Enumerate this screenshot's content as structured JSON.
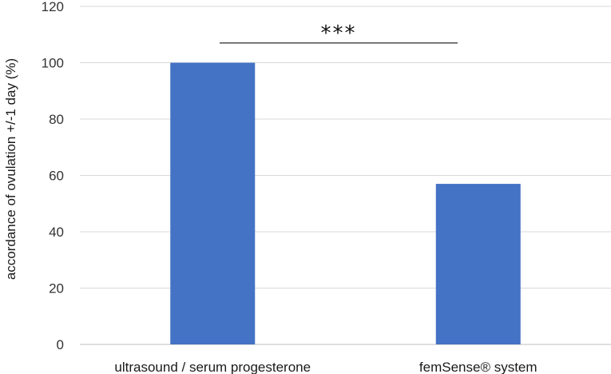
{
  "chart_data": {
    "type": "bar",
    "categories": [
      "ultrasound / serum progesterone",
      "femSense® system"
    ],
    "values": [
      100,
      57
    ],
    "xlabel": "",
    "ylabel": "accordance of ovulation  +/-1 day (%)",
    "ylim": [
      0,
      120
    ],
    "yticks": [
      0,
      20,
      40,
      60,
      80,
      100,
      120
    ],
    "grid": true,
    "legend": "none",
    "bar_color": "#4472C4",
    "annotations": [
      {
        "text": "***",
        "type": "significance-bracket",
        "between": [
          0,
          1
        ],
        "y": 107
      }
    ]
  }
}
